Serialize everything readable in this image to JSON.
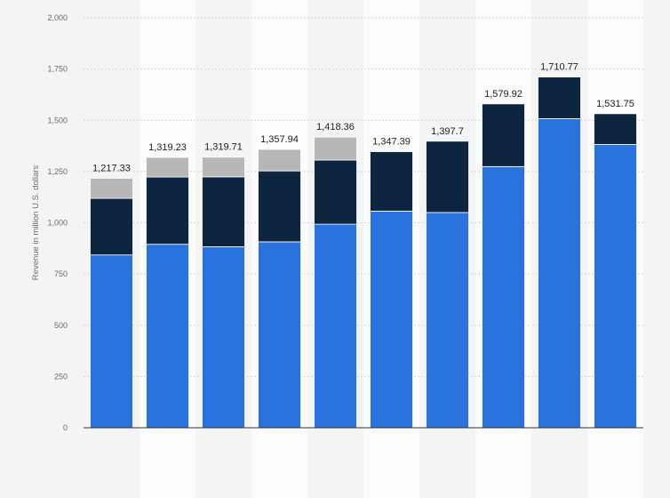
{
  "chart_data": {
    "type": "bar",
    "stacked": true,
    "categories": [
      "",
      "",
      "",
      "",
      "",
      "",
      "",
      "",
      "",
      ""
    ],
    "series": [
      {
        "values": [
          843,
          895,
          883,
          907,
          993,
          1057,
          1050,
          1274,
          1508,
          1382
        ],
        "color": "#2a72dc"
      },
      {
        "values": [
          276,
          328,
          341,
          346,
          313,
          290,
          348,
          306,
          203,
          150
        ],
        "color": "#0e253f"
      },
      {
        "values": [
          98,
          96,
          96,
          105,
          112,
          0,
          0,
          0,
          0,
          0
        ],
        "color": "#b7b7b7"
      }
    ],
    "totals": [
      "1,217.33",
      "1,319.23",
      "1,319.71",
      "1,357.94",
      "1,418.36",
      "1,347.39",
      "1,397.7",
      "1,579.92",
      "1,710.77",
      "1,531.75"
    ],
    "ylabel": "Revenue in million U.S. dollars",
    "xlabel": "",
    "ylim": [
      0,
      2000
    ],
    "yticks": [
      0,
      250,
      500,
      750,
      1000,
      1250,
      1500,
      1750,
      2000
    ],
    "ytick_labels": [
      "0",
      "250",
      "500",
      "750",
      "1,000",
      "1,250",
      "1,500",
      "1,750",
      "2,000"
    ],
    "grid": true,
    "colors": {
      "background": "#f4f4f4",
      "band_alternate": "#fbfbfb",
      "grid": "#d6d6d6",
      "axis": "#333333"
    }
  }
}
